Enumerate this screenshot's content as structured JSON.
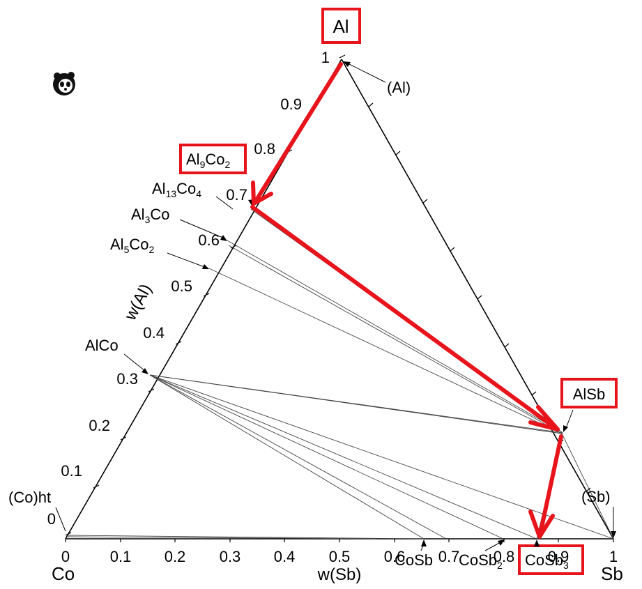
{
  "diagram": {
    "corners": {
      "top": "Al",
      "left": "Co",
      "right": "Sb"
    },
    "axes": {
      "left_title": "w(Al)",
      "bottom_title": "w(Sb)",
      "left_ticks": [
        "0",
        "0.1",
        "0.2",
        "0.3",
        "0.4",
        "0.5",
        "0.6",
        "0.7",
        "0.8",
        "0.9",
        "1"
      ],
      "bottom_ticks": [
        "0",
        "0.1",
        "0.2",
        "0.3",
        "0.4",
        "0.5",
        "0.6",
        "0.7",
        "0.8",
        "0.9",
        "1"
      ]
    },
    "phases": {
      "al_solid": "(Al)",
      "sb_solid": "(Sb)",
      "co_ht": "(Co)ht",
      "al9co2": {
        "base": "Al",
        "s1": "9",
        "mid": "Co",
        "s2": "2"
      },
      "al13co4": {
        "base": "Al",
        "s1": "13",
        "mid": "Co",
        "s2": "4"
      },
      "al3co": {
        "base": "Al",
        "s1": "3",
        "mid": "Co"
      },
      "al5co2": {
        "base": "Al",
        "s1": "5",
        "mid": "Co",
        "s2": "2"
      },
      "alco": "AlCo",
      "alsb": "AlSb",
      "cosb": "CoSb",
      "cosb2": {
        "base": "CoSb",
        "s2": "2"
      },
      "cosb3": {
        "base": "CoSb",
        "s2": "3"
      }
    },
    "highlight_color": "#e8141c",
    "highlighted": [
      "Al",
      "Al9Co2",
      "AlSb",
      "CoSb3"
    ],
    "path_arrows": [
      "Al → Al9Co2",
      "Al9Co2 → AlSb",
      "AlSb → CoSb3"
    ],
    "icons": [
      "panda-icon"
    ]
  }
}
